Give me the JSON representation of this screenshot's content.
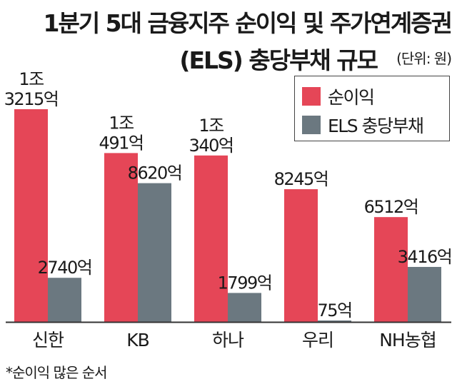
{
  "colors": {
    "profit": "#e54657",
    "liability": "#6b7880",
    "baseline": "#333333"
  },
  "title_line1": "1분기 5대 금융지주 순이익 및 주가연계증권",
  "title_line2": "(ELS) 충당부채 규모",
  "unit": "(단위: 원)",
  "footnote": "*순이익 많은 순서",
  "chart_data": {
    "type": "bar",
    "categories": [
      "신한",
      "KB",
      "하나",
      "우리",
      "NH농협"
    ],
    "unit": "억원",
    "series": [
      {
        "name": "순이익",
        "values": [
          13215,
          10491,
          10340,
          8245,
          6512
        ],
        "labels": [
          [
            "1조",
            "3215억"
          ],
          [
            "1조",
            "491억"
          ],
          [
            "1조",
            "340억"
          ],
          [
            "8245억"
          ],
          [
            "6512억"
          ]
        ]
      },
      {
        "name": "ELS 충당부채",
        "values": [
          2740,
          8620,
          1799,
          75,
          3416
        ],
        "labels": [
          [
            "2740억"
          ],
          [
            "8620억"
          ],
          [
            "1799억"
          ],
          [
            "75억"
          ],
          [
            "3416억"
          ]
        ]
      }
    ],
    "ylim": [
      0,
      13215
    ],
    "grid": false,
    "legend_position": "top-right"
  }
}
